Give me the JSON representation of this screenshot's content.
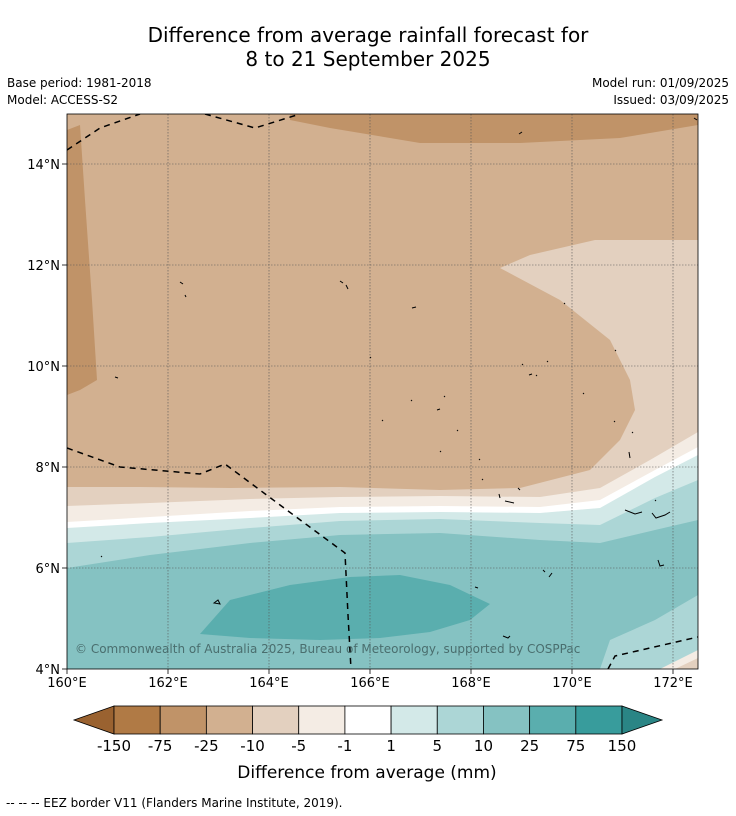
{
  "title": {
    "line1": "Difference from average rainfall forecast for",
    "line2": "8 to 21 September 2025"
  },
  "meta": {
    "base_period": "Base period: 1981-2018",
    "model": "Model: ACCESS-S2",
    "model_run": "Model run: 01/09/2025",
    "issued": "Issued: 03/09/2025"
  },
  "map": {
    "lon_ticks": [
      "160°E",
      "162°E",
      "164°E",
      "166°E",
      "168°E",
      "170°E",
      "172°E"
    ],
    "lat_ticks": [
      "4°N",
      "6°N",
      "8°N",
      "10°N",
      "12°N",
      "14°N"
    ],
    "copyright": "© Commonwealth of Australia 2025, Bureau of Meteorology, supported by COSPPac"
  },
  "legend": {
    "title": "Difference from average (mm)",
    "labels": [
      "-150",
      "-75",
      "-25",
      "-10",
      "-5",
      "-1",
      "1",
      "5",
      "10",
      "25",
      "75",
      "150"
    ],
    "colors": [
      "#9a6230",
      "#b07a45",
      "#c09368",
      "#d2b090",
      "#e3d0bf",
      "#f4ece4",
      "#ffffff",
      "#d3e9e8",
      "#acd6d6",
      "#85c2c2",
      "#5aaeae",
      "#389c9c",
      "#2a8585"
    ]
  },
  "footer": {
    "eez_note": "--  --  -- EEZ border V11 (Flanders Marine Institute, 2019)."
  }
}
